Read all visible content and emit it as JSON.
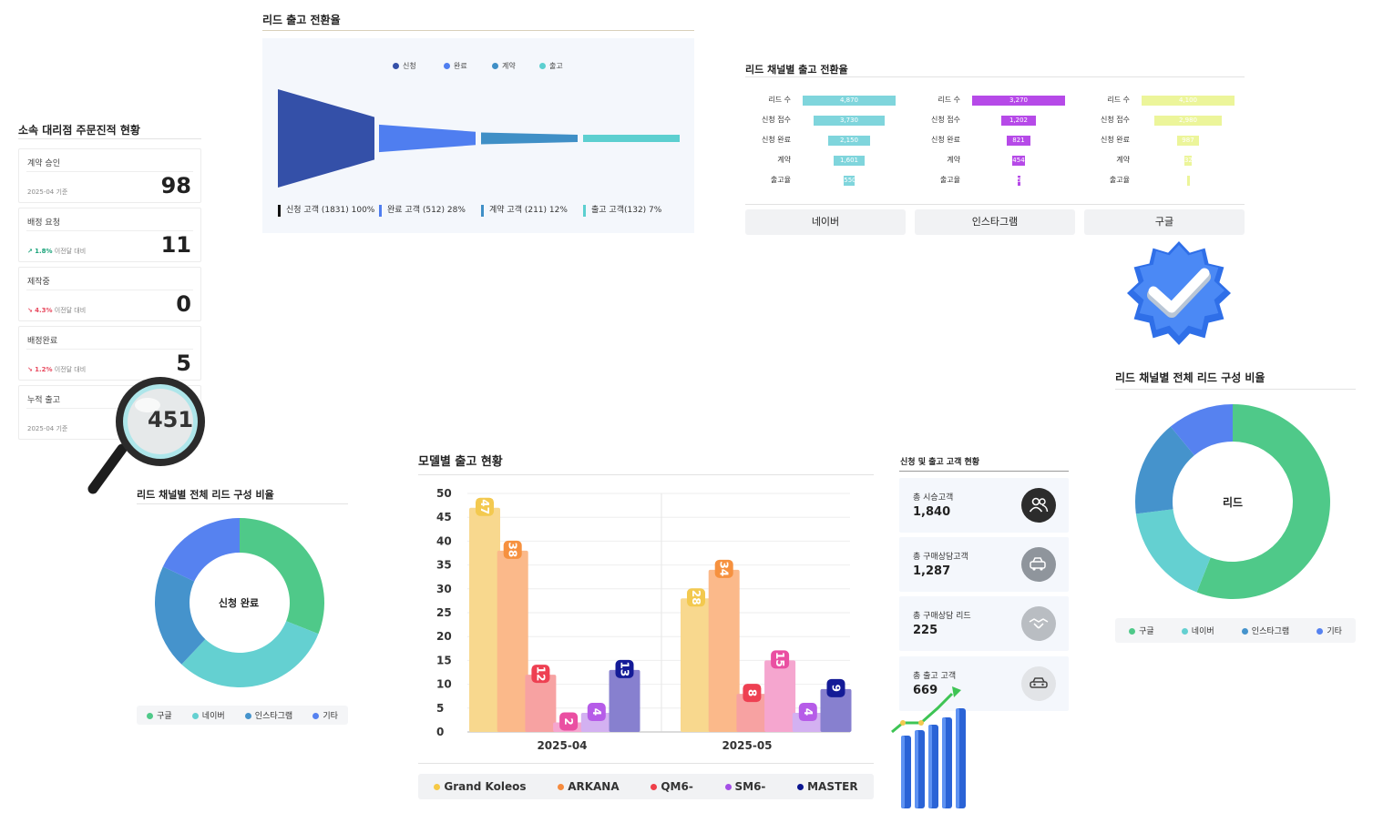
{
  "dealer_panel": {
    "title": "소속 대리점 주문진적 현황",
    "cards": [
      {
        "label": "계약 승인",
        "value": "98",
        "sub": "2025-04 기준",
        "trend": "",
        "trend_dir": ""
      },
      {
        "label": "배정 요청",
        "value": "11",
        "sub": "이전달 대비",
        "trend": "1.8%",
        "trend_dir": "up"
      },
      {
        "label": "제작중",
        "value": "0",
        "sub": "이전달 대비",
        "trend": "4.3%",
        "trend_dir": "down"
      },
      {
        "label": "배정완료",
        "value": "5",
        "sub": "이전달 대비",
        "trend": "1.2%",
        "trend_dir": "down"
      },
      {
        "label": "누적 출고",
        "value": "451",
        "sub": "2025-04 기준",
        "trend": "",
        "trend_dir": ""
      }
    ]
  },
  "funnel": {
    "title": "리드 출고 전환율",
    "legend": [
      {
        "name": "신청",
        "color": "#3450a8"
      },
      {
        "name": "완료",
        "color": "#4f7ef0"
      },
      {
        "name": "계약",
        "color": "#3f8fc6"
      },
      {
        "name": "출고",
        "color": "#5ccfd0"
      }
    ],
    "stages": [
      {
        "label": "신청 고객 (1831) 100%",
        "count": 1831,
        "percent": 100,
        "color": "#3450a8"
      },
      {
        "label": "완료 고객 (512) 28%",
        "count": 512,
        "percent": 28,
        "color": "#4f7ef0"
      },
      {
        "label": "계약 고객 (211) 12%",
        "count": 211,
        "percent": 12,
        "color": "#3f8fc6"
      },
      {
        "label": "출고 고객(132) 7%",
        "count": 132,
        "percent": 7,
        "color": "#5ccfd0"
      }
    ]
  },
  "channel_conversion": {
    "title": "리드 채널별 출고 전환율",
    "row_labels": [
      "리드 수",
      "신청 접수",
      "신청 완료",
      "계약",
      "출고율"
    ],
    "channels": [
      {
        "name": "네이버",
        "color": "#7fd5dc",
        "values": [
          4870,
          3730,
          2150,
          1601,
          550
        ],
        "labels": [
          "4,870",
          "3,730",
          "2,150",
          "1,601",
          "550"
        ]
      },
      {
        "name": "인스타그램",
        "color": "#b64ae8",
        "values": [
          3270,
          1202,
          821,
          454,
          51
        ],
        "labels": [
          "3,270",
          "1,202",
          "821",
          "454",
          "51"
        ]
      },
      {
        "name": "구글",
        "color": "#ecf59a",
        "values": [
          4100,
          2980,
          987,
          324,
          55
        ],
        "labels": [
          "4,100",
          "2,980",
          "987",
          "324",
          ""
        ]
      }
    ]
  },
  "donut_small": {
    "title": "리드 채널별 전체 리드 구성 비율",
    "center": "신청 완료",
    "slices": [
      {
        "name": "구글",
        "value": 31,
        "color": "#4fc989"
      },
      {
        "name": "네이버",
        "value": 31,
        "color": "#64d0d1"
      },
      {
        "name": "인스타그램",
        "value": 20,
        "color": "#4593cc"
      },
      {
        "name": "기타",
        "value": 18,
        "color": "#5682f0"
      }
    ]
  },
  "donut_large": {
    "title": "리드 채널별 전체 리드 구성 비율",
    "center": "리드",
    "slices": [
      {
        "name": "구글",
        "value": 56,
        "color": "#4fc989"
      },
      {
        "name": "네이버",
        "value": 17,
        "color": "#64d0d1"
      },
      {
        "name": "인스타그램",
        "value": 16,
        "color": "#4593cc"
      },
      {
        "name": "기타",
        "value": 11,
        "color": "#5682f0"
      }
    ]
  },
  "customer_stats": {
    "title": "신청 및 출고 고객 현황",
    "items": [
      {
        "label": "총 시승고객",
        "value": "1,840",
        "icon": "users-icon"
      },
      {
        "label": "총 구매상담고객",
        "value": "1,287",
        "icon": "car-chat-icon"
      },
      {
        "label": "총 구매상담 리드",
        "value": "225",
        "icon": "handshake-icon"
      },
      {
        "label": "총 출고 고객",
        "value": "669",
        "icon": "car-icon"
      }
    ]
  },
  "chart_data": {
    "type": "bar",
    "title": "모델별 출고 현황",
    "categories": [
      "2025-04",
      "2025-05"
    ],
    "ylim": [
      0,
      50
    ],
    "yticks": [
      0,
      5,
      10,
      15,
      20,
      25,
      30,
      35,
      40,
      45,
      50
    ],
    "grid": true,
    "legend_position": "bottom",
    "series": [
      {
        "name": "Grand Koleos",
        "values": [
          47,
          28
        ],
        "color": "#f8d88e",
        "legend_color": "#f6c945",
        "badge": "#f3c94f"
      },
      {
        "name": "ARKANA",
        "values": [
          38,
          34
        ],
        "color": "#fbb98a",
        "legend_color": "#f68b3e",
        "badge": "#f6913f"
      },
      {
        "name": "QM6-",
        "values": [
          12,
          8
        ],
        "color": "#f7a2a2",
        "legend_color": "#ef3f49",
        "badge": "#ee4052"
      },
      {
        "name": "SM6-",
        "values": [
          2,
          15
        ],
        "color": "#f5a6cf",
        "legend_color": "#a44fe6",
        "badge": "#ea4fa2"
      },
      {
        "name": "",
        "values": [
          4,
          4
        ],
        "color": "#d3b1f1",
        "legend_color": "#a44fe6",
        "badge": "#b65ce8"
      },
      {
        "name": "MASTER",
        "values": [
          13,
          9
        ],
        "color": "#8780cf",
        "legend_color": "#0b1590",
        "badge": "#141b97"
      }
    ]
  }
}
